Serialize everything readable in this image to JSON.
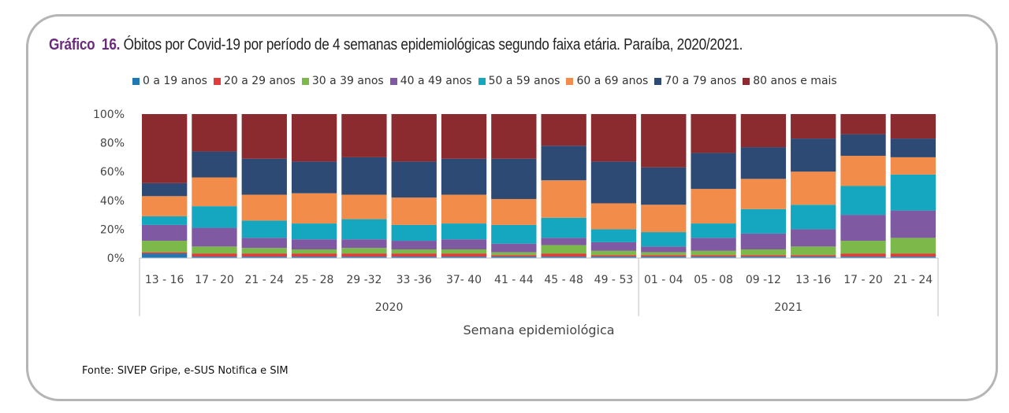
{
  "figure": {
    "label": "Gráfico",
    "number": "16.",
    "caption": "Óbitos por Covid-19 por período de 4 semanas epidemiológicas segundo faixa etária. Paraíba, 2020/2021.",
    "source": "Fonte: SIVEP Gripe, e-SUS Notifica e SIM"
  },
  "chart_data": {
    "type": "bar",
    "stacked": true,
    "percent": true,
    "title": "",
    "xlabel": "Semana epidemiológica",
    "ylabel": "",
    "ylim": [
      0,
      100
    ],
    "yticks": [
      "0%",
      "20%",
      "40%",
      "60%",
      "80%",
      "100%"
    ],
    "categories": [
      "13 - 16",
      "17 - 20",
      "21 - 24",
      "25 - 28",
      "29 -32",
      "33 -36",
      "37- 40",
      "41 - 44",
      "45 - 48",
      "49 - 53",
      "01 - 04",
      "05 - 08",
      "09 -12",
      "13 -16",
      "17 - 20",
      "21 - 24"
    ],
    "groups": [
      {
        "label": "2020",
        "start": 0,
        "count": 10
      },
      {
        "label": "2021",
        "start": 10,
        "count": 6
      }
    ],
    "legend_position": "top",
    "grid": false,
    "series": [
      {
        "name": "0 a 19 anos",
        "color": "#1f77b4",
        "values": [
          3,
          1,
          1,
          1,
          1,
          1,
          1,
          1,
          1,
          1,
          1,
          1,
          1,
          1,
          1,
          1
        ]
      },
      {
        "name": "20 a 29 anos",
        "color": "#e03c3c",
        "values": [
          1,
          2,
          2,
          2,
          2,
          2,
          2,
          1,
          2,
          1,
          1,
          1,
          1,
          1,
          2,
          2
        ]
      },
      {
        "name": "30 a 39 anos",
        "color": "#7db84a",
        "values": [
          8,
          5,
          4,
          3,
          4,
          3,
          3,
          2,
          6,
          3,
          2,
          3,
          4,
          6,
          9,
          11
        ]
      },
      {
        "name": "40 a 49 anos",
        "color": "#7f5aa2",
        "values": [
          11,
          13,
          7,
          7,
          6,
          6,
          7,
          6,
          5,
          6,
          4,
          9,
          11,
          12,
          18,
          19
        ]
      },
      {
        "name": "50 a 59 anos",
        "color": "#14a7bf",
        "values": [
          6,
          15,
          12,
          11,
          14,
          11,
          11,
          13,
          14,
          9,
          10,
          10,
          17,
          17,
          20,
          25
        ]
      },
      {
        "name": "60 a 69 anos",
        "color": "#f28c4b",
        "values": [
          14,
          20,
          18,
          21,
          17,
          19,
          20,
          18,
          26,
          18,
          19,
          24,
          21,
          23,
          21,
          12
        ]
      },
      {
        "name": "70 a 79 anos",
        "color": "#2c4a73",
        "values": [
          9,
          18,
          25,
          22,
          26,
          25,
          25,
          28,
          24,
          29,
          26,
          25,
          22,
          23,
          15,
          13
        ]
      },
      {
        "name": "80 anos e mais",
        "color": "#8b2a2f",
        "values": [
          48,
          26,
          31,
          33,
          30,
          33,
          31,
          31,
          22,
          33,
          37,
          27,
          23,
          17,
          14,
          17
        ]
      }
    ]
  }
}
